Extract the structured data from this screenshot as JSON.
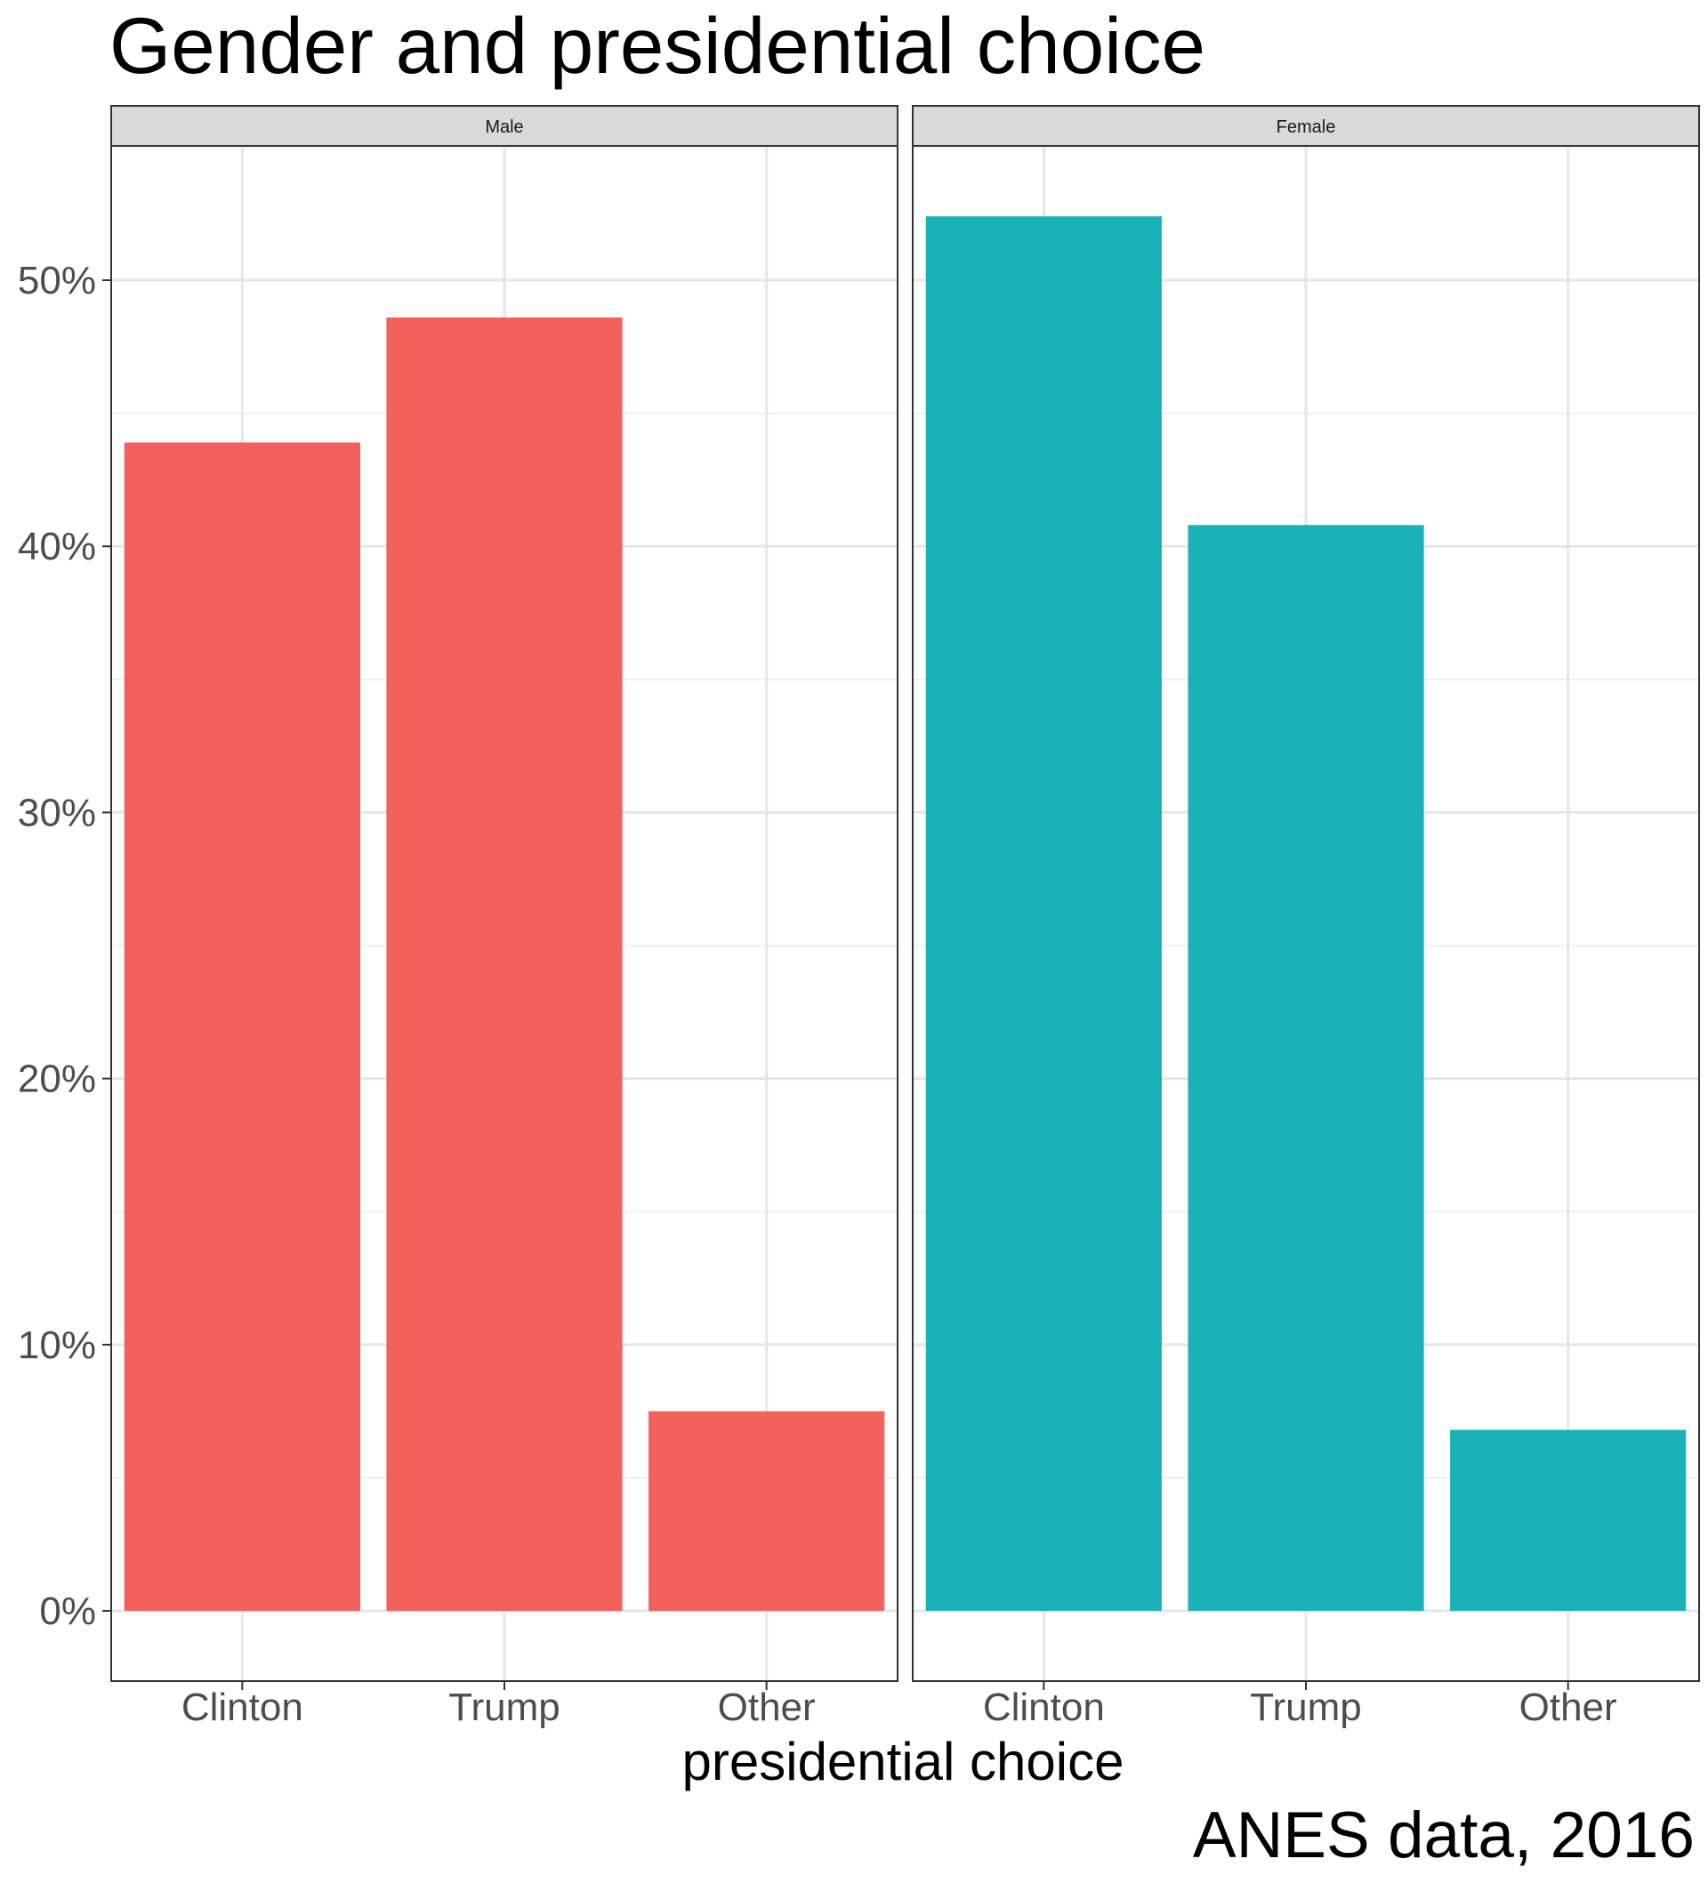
{
  "chart_data": {
    "type": "bar",
    "title": "Gender and presidential choice",
    "caption": "ANES data, 2016",
    "xlabel": "presidential choice",
    "ylabel": "",
    "categories": [
      "Clinton",
      "Trump",
      "Other"
    ],
    "ylim": [
      -2.6,
      55
    ],
    "yticks": [
      0,
      10,
      20,
      30,
      40,
      50
    ],
    "ytick_labels": [
      "0%",
      "10%",
      "20%",
      "30%",
      "40%",
      "50%"
    ],
    "grid": true,
    "facets": [
      {
        "name": "Male",
        "color": "#F2615C",
        "values": [
          43.9,
          48.6,
          7.5
        ]
      },
      {
        "name": "Female",
        "color": "#1AB2B6",
        "values": [
          52.4,
          40.8,
          6.8
        ]
      }
    ]
  }
}
